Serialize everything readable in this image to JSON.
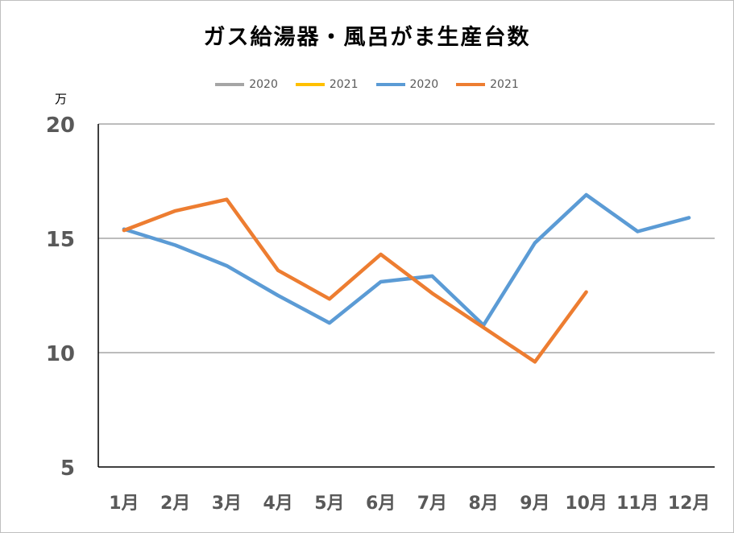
{
  "chart_data": {
    "type": "line",
    "title": "ガス給湯器・風呂がま生産台数",
    "y_unit": "万",
    "categories": [
      "1月",
      "2月",
      "3月",
      "4月",
      "5月",
      "6月",
      "7月",
      "8月",
      "9月",
      "10月",
      "11月",
      "12月"
    ],
    "ylim": [
      5,
      20
    ],
    "yticks": [
      5,
      10,
      15,
      20
    ],
    "grid": true,
    "legend_position": "top",
    "legend": [
      {
        "name": "2020",
        "color": "#a5a5a5"
      },
      {
        "name": "2021",
        "color": "#ffc000"
      },
      {
        "name": "2020",
        "color": "#5b9bd5"
      },
      {
        "name": "2021",
        "color": "#ed7d31"
      }
    ],
    "series": [
      {
        "name": "2020",
        "color": "#5b9bd5",
        "values": [
          15.4,
          14.7,
          13.8,
          12.5,
          11.3,
          13.1,
          13.35,
          11.2,
          14.8,
          16.9,
          15.3,
          15.9
        ]
      },
      {
        "name": "2021",
        "color": "#ed7d31",
        "values": [
          15.35,
          16.2,
          16.7,
          13.6,
          12.35,
          14.3,
          12.6,
          11.1,
          9.6,
          12.65,
          null,
          null
        ]
      }
    ]
  }
}
